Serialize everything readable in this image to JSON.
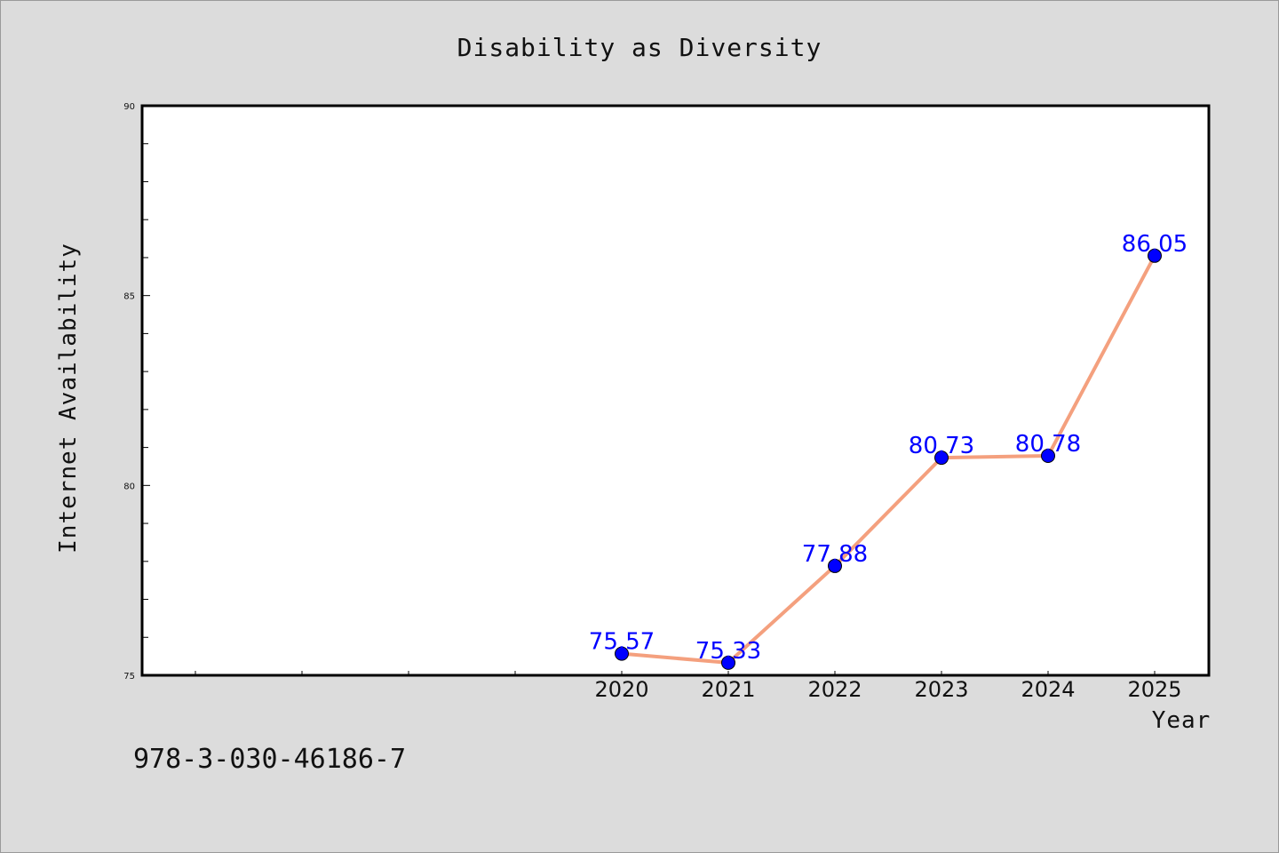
{
  "isbn": "978-3-030-46186-7",
  "chart_data": {
    "type": "line",
    "title": "Disability as Diversity",
    "xlabel": "Year",
    "ylabel": "Internet Availability",
    "x": [
      2020,
      2021,
      2022,
      2023,
      2024,
      2025
    ],
    "series": [
      {
        "values": [
          75.57,
          75.33,
          77.88,
          80.73,
          80.78,
          86.05
        ],
        "data_labels": [
          "75.57",
          "75.33",
          "77.88",
          "80.73",
          "80.78",
          "86.05"
        ]
      }
    ],
    "ylim": [
      75,
      90
    ],
    "y_ticks": [
      75,
      80,
      85,
      90
    ],
    "y_tick_labels": [
      "75",
      "80",
      "85",
      "90"
    ],
    "x_tick_labels": [
      "2020",
      "2021",
      "2022",
      "2023",
      "2024",
      "2025"
    ],
    "grid": false,
    "legend": "none",
    "colors": {
      "line": "#f4a07e",
      "marker": "#0000ff",
      "data_label": "#0000ff",
      "plot_background": "#ffffff",
      "figure_background": "#dcdcdc"
    }
  }
}
